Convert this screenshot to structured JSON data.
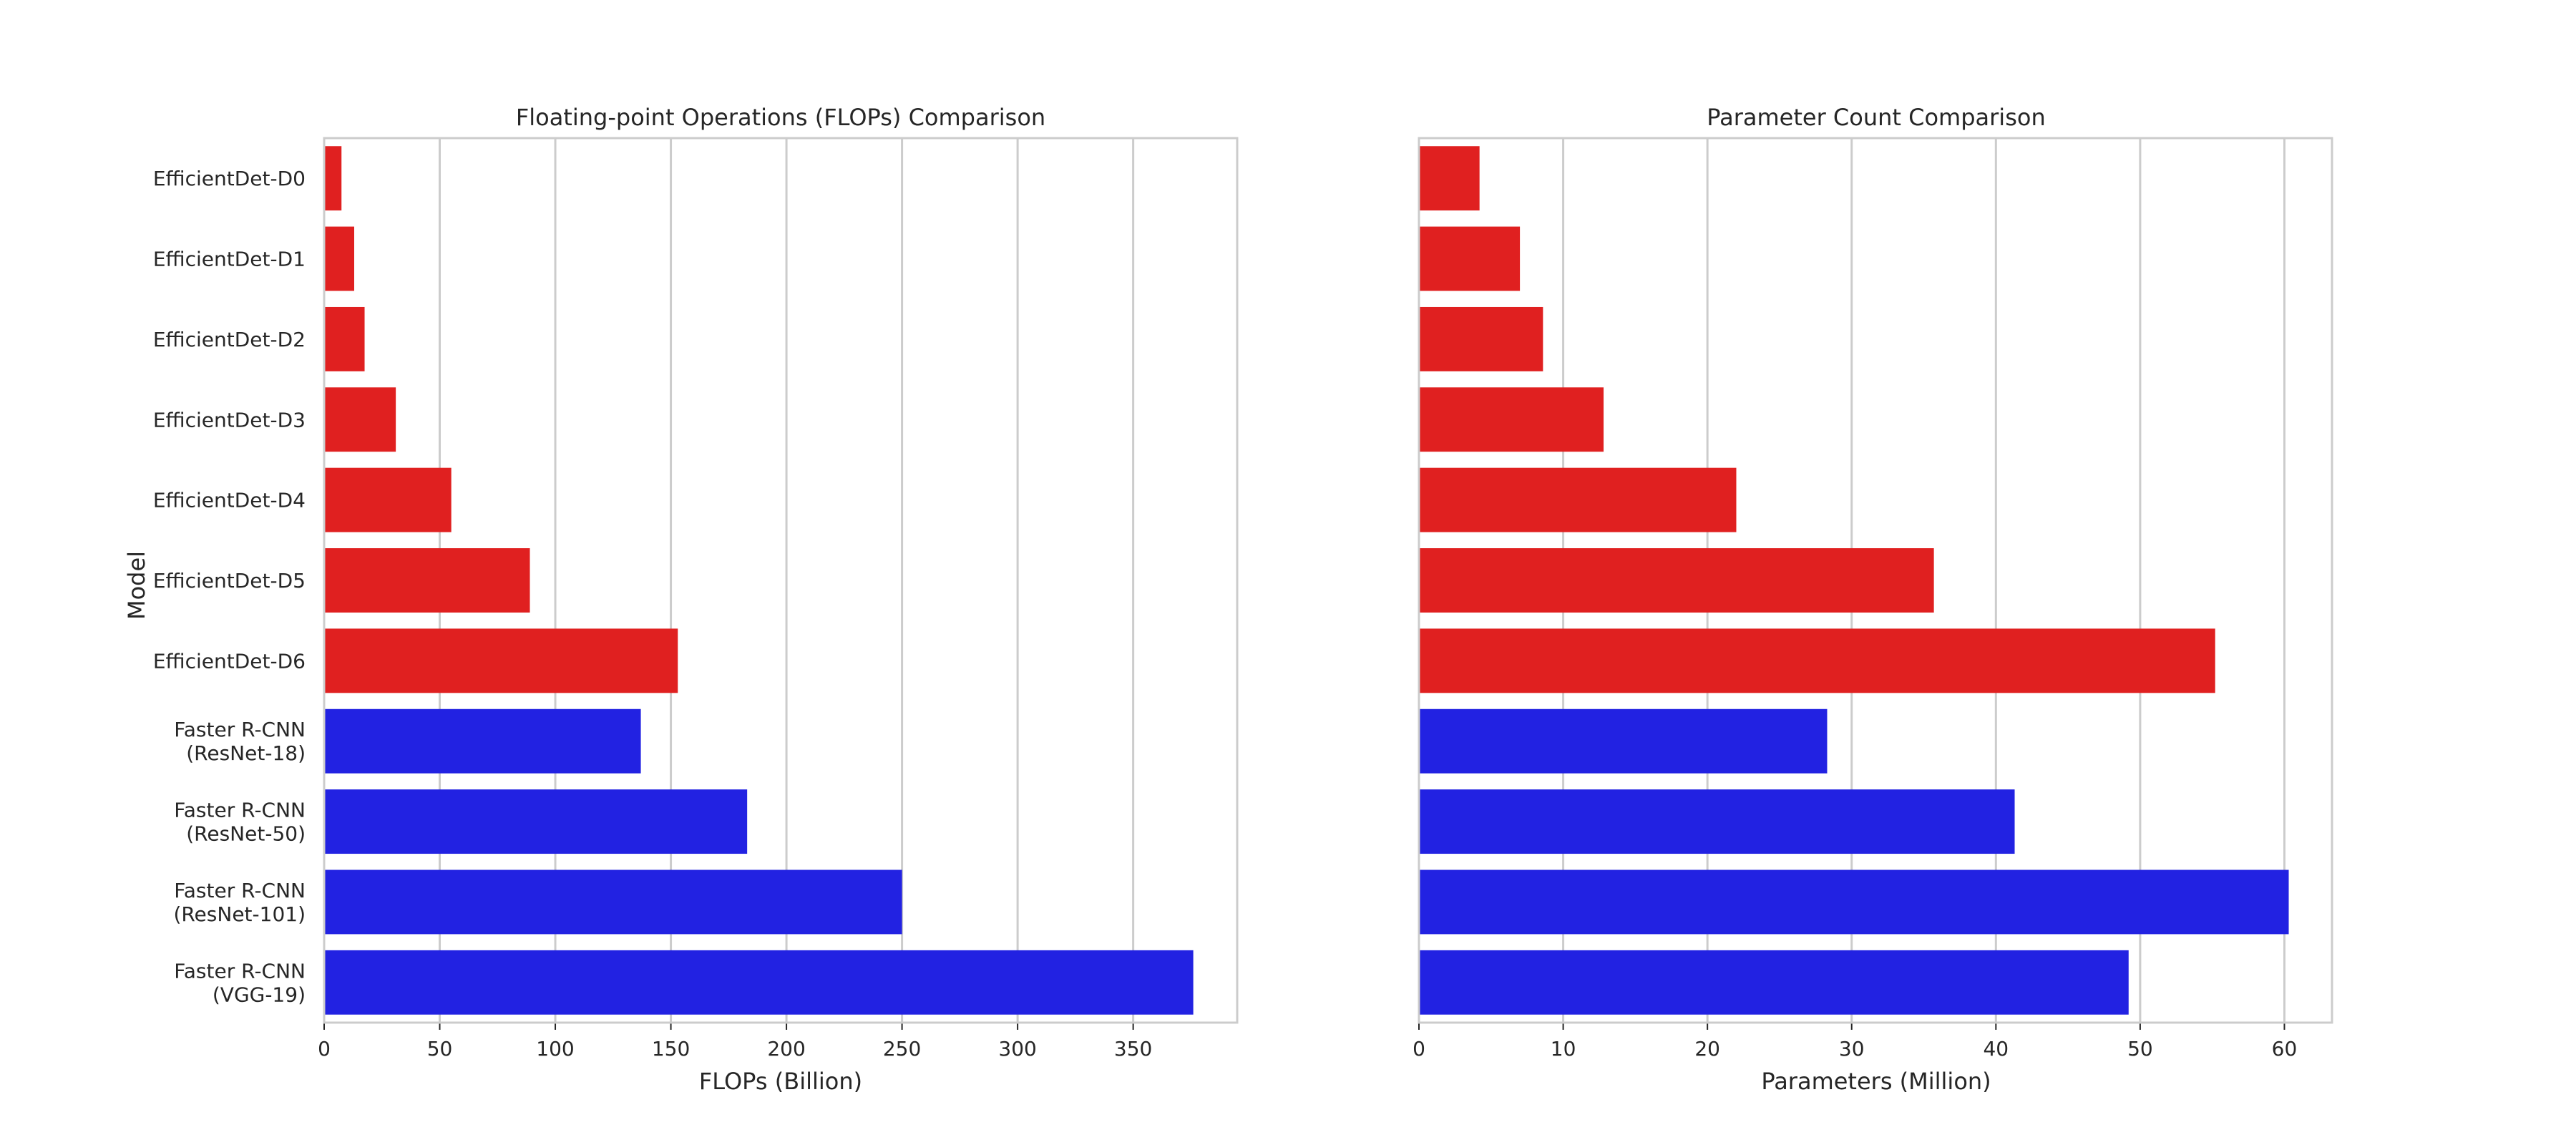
{
  "chart_data": [
    {
      "type": "bar",
      "orientation": "horizontal",
      "title": "Floating-point Operations (FLOPs) Comparison",
      "xlabel": "FLOPs (Billion)",
      "ylabel": "Model",
      "xlim": [
        0,
        395
      ],
      "xticks": [
        0,
        50,
        100,
        150,
        200,
        250,
        300,
        350
      ],
      "grid": "x",
      "categories": [
        "EfficientDet-D0",
        "EfficientDet-D1",
        "EfficientDet-D2",
        "EfficientDet-D3",
        "EfficientDet-D4",
        "EfficientDet-D5",
        "EfficientDet-D6",
        "Faster R-CNN\n(ResNet-18)",
        "Faster R-CNN\n(ResNet-50)",
        "Faster R-CNN\n(ResNet-101)",
        "Faster R-CNN\n(VGG-19)"
      ],
      "values": [
        7.5,
        13,
        17.5,
        31,
        55,
        89,
        153,
        137,
        183,
        250,
        376
      ],
      "colors": [
        "#e02020",
        "#e02020",
        "#e02020",
        "#e02020",
        "#e02020",
        "#e02020",
        "#e02020",
        "#2222e2",
        "#2222e2",
        "#2222e2",
        "#2222e2"
      ]
    },
    {
      "type": "bar",
      "orientation": "horizontal",
      "title": "Parameter Count Comparison",
      "xlabel": "Parameters (Million)",
      "ylabel": "",
      "xlim": [
        0,
        63.3
      ],
      "xticks": [
        0,
        10,
        20,
        30,
        40,
        50,
        60
      ],
      "grid": "x",
      "categories": [
        "EfficientDet-D0",
        "EfficientDet-D1",
        "EfficientDet-D2",
        "EfficientDet-D3",
        "EfficientDet-D4",
        "EfficientDet-D5",
        "EfficientDet-D6",
        "Faster R-CNN\n(ResNet-18)",
        "Faster R-CNN\n(ResNet-50)",
        "Faster R-CNN\n(ResNet-101)",
        "Faster R-CNN\n(VGG-19)"
      ],
      "values": [
        4.2,
        7.0,
        8.6,
        12.8,
        22.0,
        35.7,
        55.2,
        28.3,
        41.3,
        60.3,
        49.2
      ],
      "colors": [
        "#e02020",
        "#e02020",
        "#e02020",
        "#e02020",
        "#e02020",
        "#e02020",
        "#e02020",
        "#2222e2",
        "#2222e2",
        "#2222e2",
        "#2222e2"
      ]
    }
  ]
}
